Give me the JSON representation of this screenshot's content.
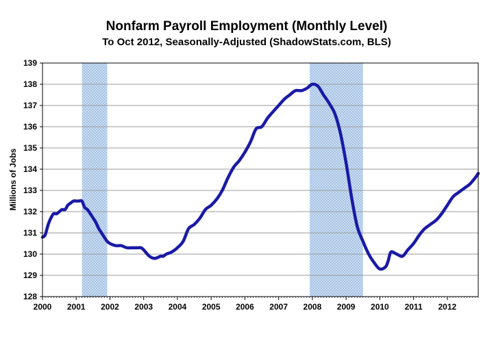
{
  "chart_data": {
    "type": "line",
    "title": "Nonfarm Payroll Employment (Monthly Level)",
    "subtitle": "To Oct 2012, Seasonally-Adjusted (ShadowStats.com, BLS)",
    "xlabel": "",
    "ylabel": "Millions of Jobs",
    "xlim": [
      2000,
      2012.917
    ],
    "ylim": [
      128,
      139
    ],
    "x_ticks": [
      "2000",
      "2001",
      "2002",
      "2003",
      "2004",
      "2005",
      "2006",
      "2007",
      "2008",
      "2009",
      "2010",
      "2011",
      "2012"
    ],
    "y_ticks": [
      "128",
      "129",
      "130",
      "131",
      "132",
      "133",
      "134",
      "135",
      "136",
      "137",
      "138",
      "139"
    ],
    "grid": true,
    "recessions": [
      {
        "start": 2001.17,
        "end": 2001.92
      },
      {
        "start": 2007.92,
        "end": 2009.5
      }
    ],
    "series": [
      {
        "color": "#1a1aa6",
        "x": [
          2000.0,
          2000.08,
          2000.17,
          2000.25,
          2000.33,
          2000.42,
          2000.5,
          2000.58,
          2000.67,
          2000.75,
          2000.83,
          2000.92,
          2001.0,
          2001.08,
          2001.17,
          2001.25,
          2001.33,
          2001.42,
          2001.5,
          2001.58,
          2001.67,
          2001.75,
          2001.83,
          2001.92,
          2002.0,
          2002.17,
          2002.33,
          2002.5,
          2002.67,
          2002.75,
          2002.83,
          2002.92,
          2003.0,
          2003.17,
          2003.33,
          2003.5,
          2003.58,
          2003.67,
          2003.83,
          2004.0,
          2004.17,
          2004.33,
          2004.5,
          2004.67,
          2004.83,
          2005.0,
          2005.17,
          2005.33,
          2005.5,
          2005.67,
          2005.83,
          2006.0,
          2006.17,
          2006.33,
          2006.5,
          2006.67,
          2006.83,
          2007.0,
          2007.17,
          2007.33,
          2007.5,
          2007.67,
          2007.83,
          2008.0,
          2008.17,
          2008.33,
          2008.5,
          2008.67,
          2008.83,
          2009.0,
          2009.17,
          2009.33,
          2009.5,
          2009.67,
          2009.83,
          2010.0,
          2010.17,
          2010.25,
          2010.33,
          2010.5,
          2010.67,
          2010.83,
          2011.0,
          2011.17,
          2011.33,
          2011.5,
          2011.67,
          2011.83,
          2012.0,
          2012.17,
          2012.33,
          2012.5,
          2012.67,
          2012.83,
          2012.917
        ],
        "y": [
          130.8,
          130.9,
          131.4,
          131.7,
          131.9,
          131.9,
          132.0,
          132.1,
          132.1,
          132.3,
          132.4,
          132.5,
          132.5,
          132.5,
          132.5,
          132.2,
          132.1,
          131.9,
          131.7,
          131.5,
          131.2,
          131.0,
          130.8,
          130.6,
          130.5,
          130.4,
          130.4,
          130.3,
          130.3,
          130.3,
          130.3,
          130.3,
          130.2,
          129.9,
          129.8,
          129.9,
          129.9,
          130.0,
          130.1,
          130.3,
          130.6,
          131.2,
          131.4,
          131.7,
          132.1,
          132.3,
          132.6,
          133.0,
          133.6,
          134.1,
          134.4,
          134.8,
          135.3,
          135.9,
          136.0,
          136.4,
          136.7,
          137.0,
          137.3,
          137.5,
          137.7,
          137.7,
          137.8,
          138.0,
          137.9,
          137.5,
          137.1,
          136.6,
          135.7,
          134.3,
          132.6,
          131.3,
          130.6,
          130.0,
          129.6,
          129.3,
          129.4,
          129.7,
          130.1,
          130.0,
          129.9,
          130.2,
          130.5,
          130.9,
          131.2,
          131.4,
          131.6,
          131.9,
          132.3,
          132.7,
          132.9,
          133.1,
          133.3,
          133.6,
          133.8
        ]
      }
    ]
  }
}
